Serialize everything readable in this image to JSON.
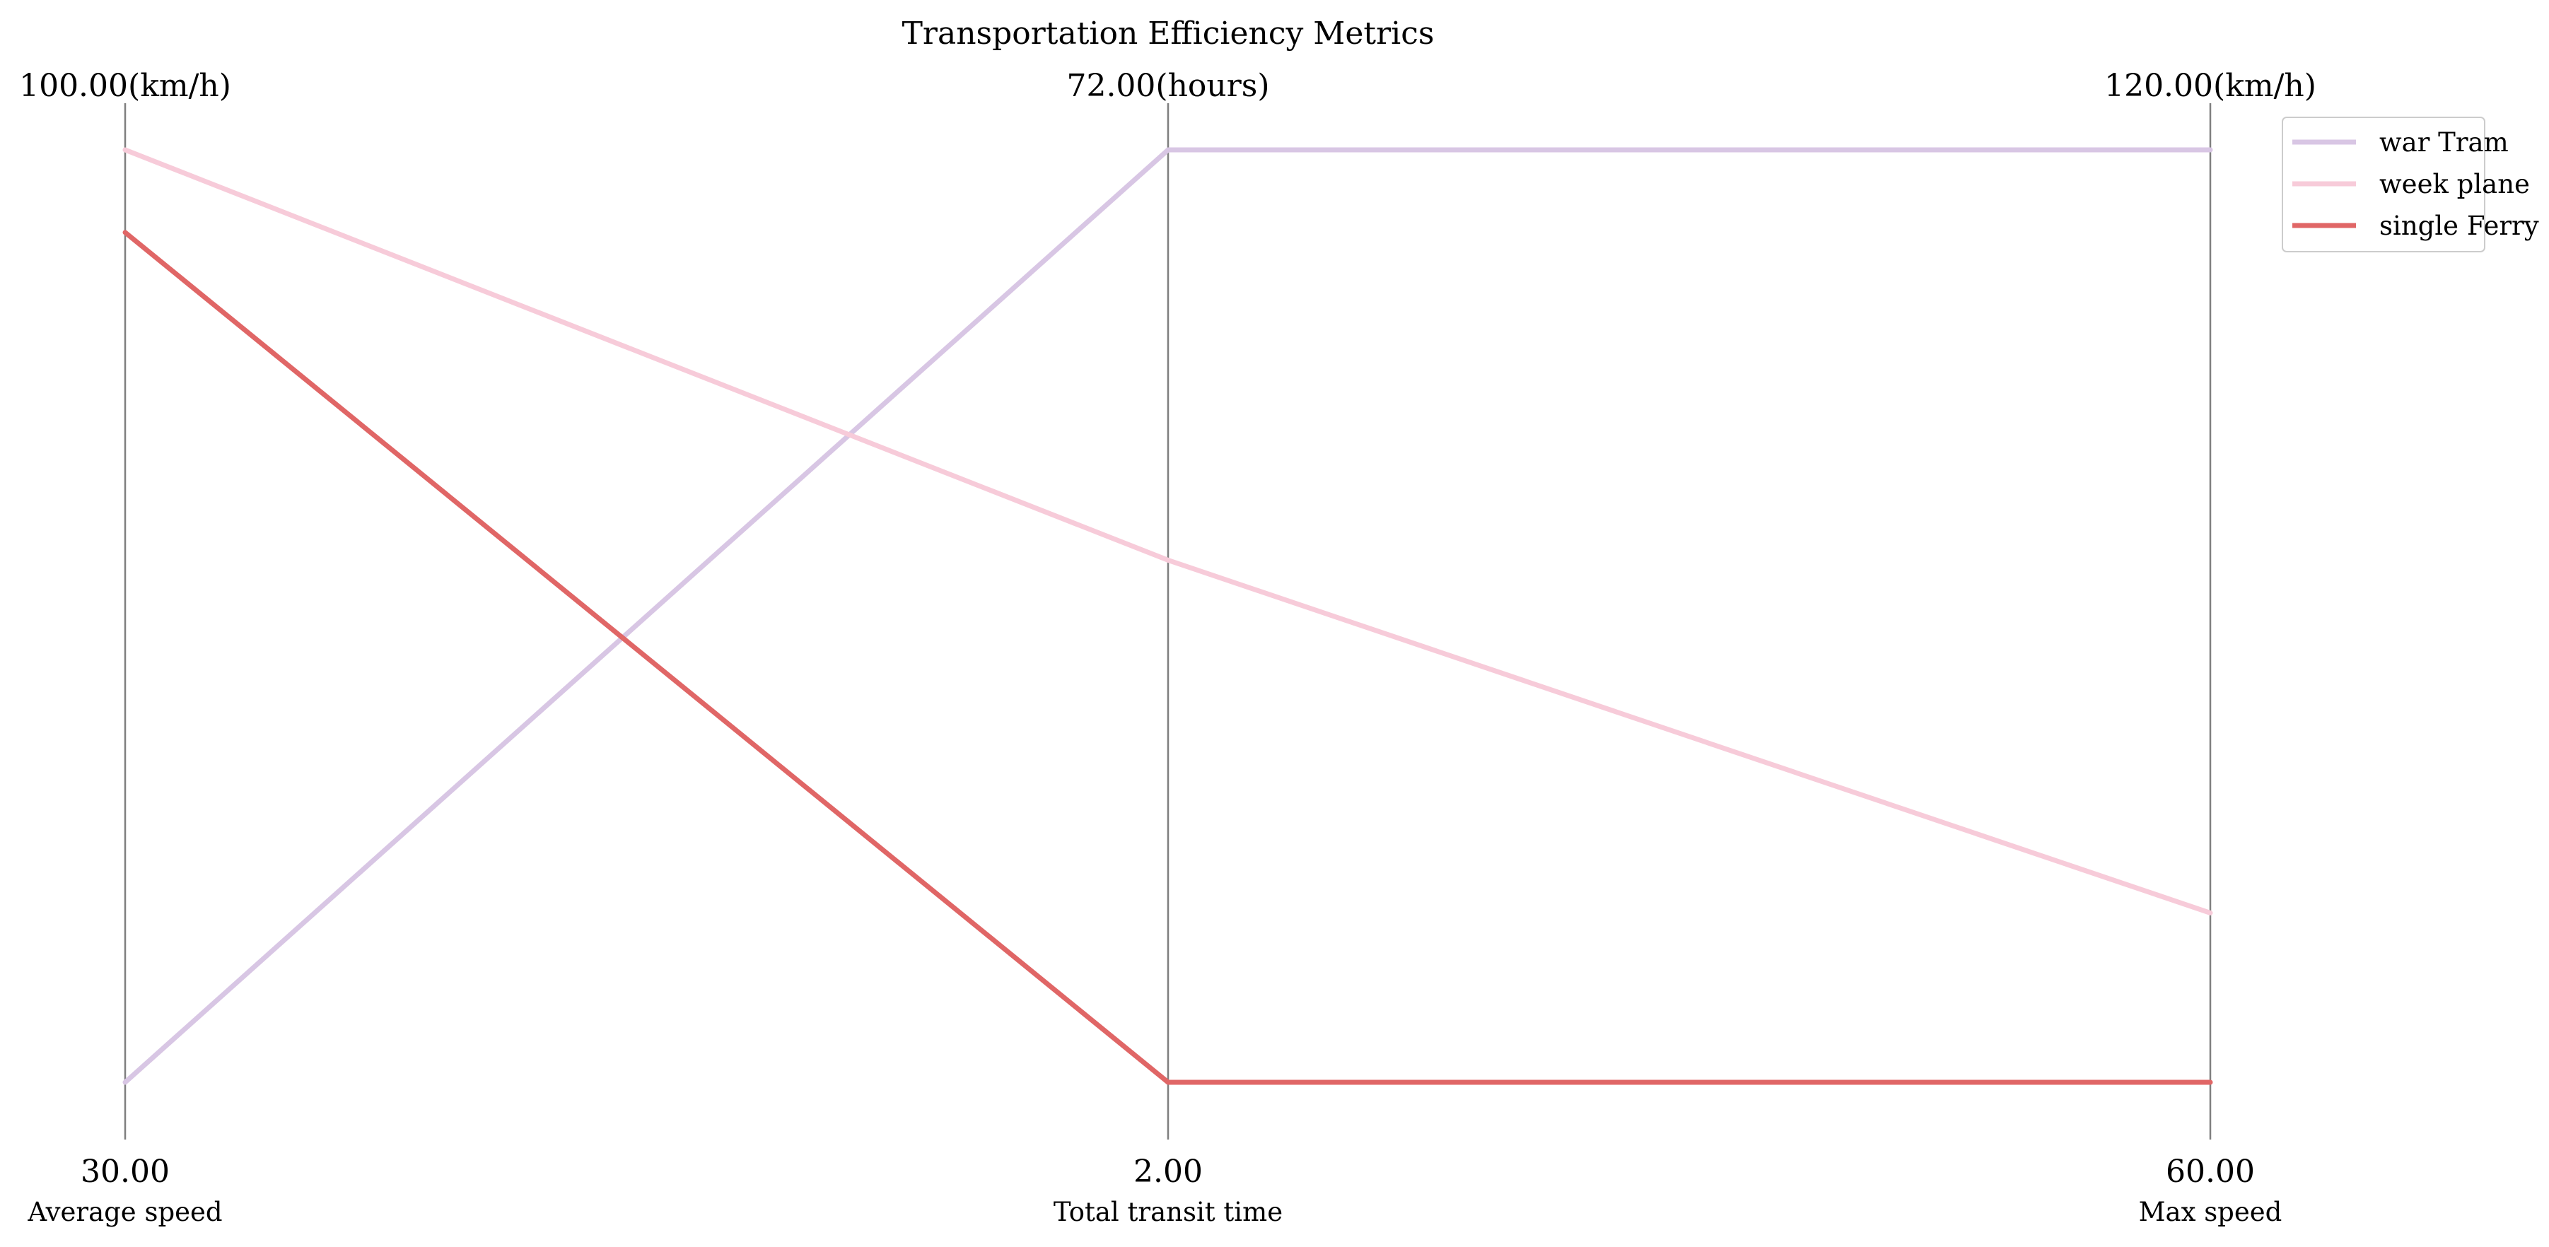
{
  "chart_data": {
    "type": "parallel-coordinates",
    "title": "Transportation Efficiency Metrics",
    "axes": [
      {
        "label": "Average speed",
        "min": 30,
        "max": 100,
        "min_label": "30.00",
        "max_label": "100.00(km/h)"
      },
      {
        "label": "Total transit time",
        "min": 2,
        "max": 72,
        "min_label": "2.00",
        "max_label": "72.00(hours)"
      },
      {
        "label": "Max speed",
        "min": 60,
        "max": 120,
        "min_label": "60.00",
        "max_label": "120.00(km/h)"
      }
    ],
    "series": [
      {
        "name": "war Tram",
        "values": [
          30,
          72,
          120
        ],
        "color": "#d8c6e4"
      },
      {
        "name": "week plane",
        "values": [
          100,
          41.2,
          70.9
        ],
        "color": "#f7cbd9"
      },
      {
        "name": "single Ferry",
        "values": [
          93.8,
          2,
          60
        ],
        "color": "#e06666"
      }
    ],
    "legend_position": "top-right",
    "grid": false
  }
}
